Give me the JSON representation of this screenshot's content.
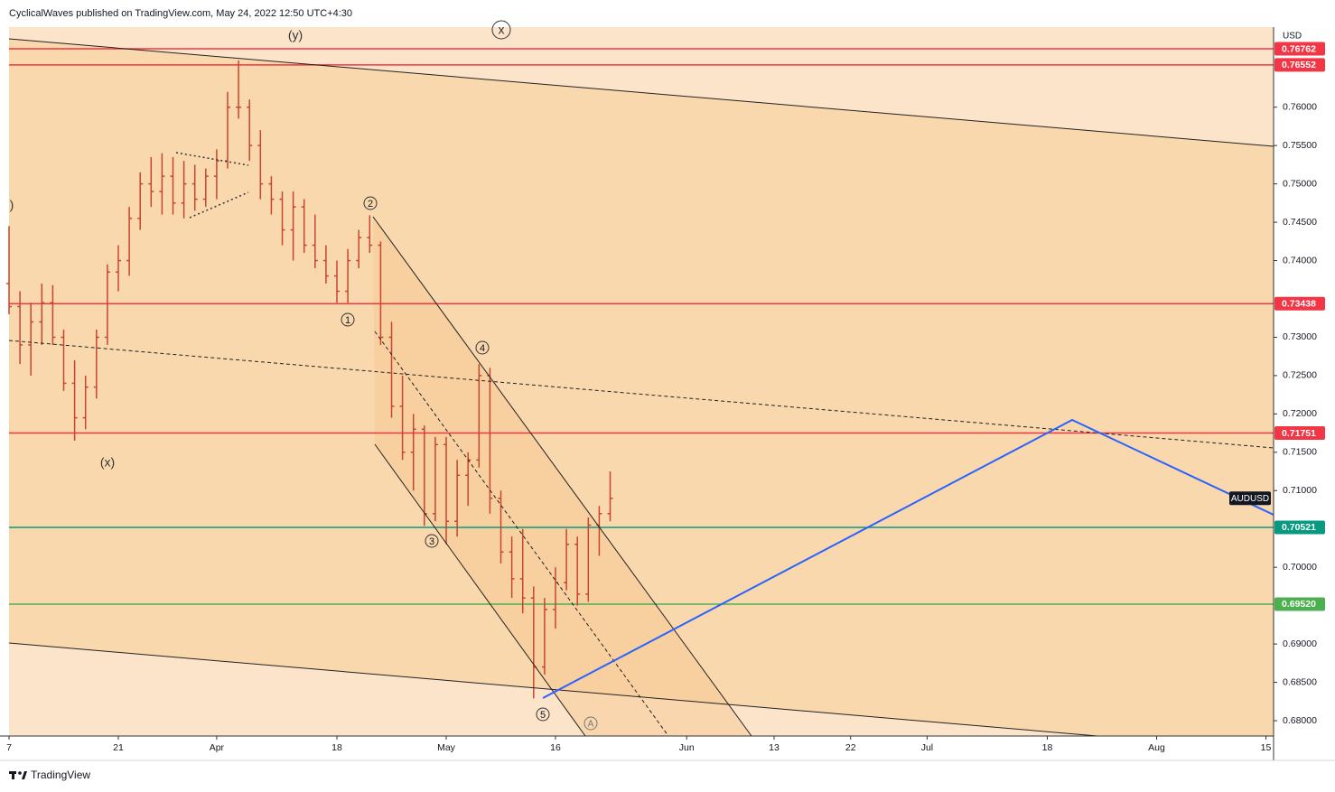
{
  "header": "CyclicalWaves published on TradingView.com, May 24, 2022 12:50 UTC+4:30",
  "footer": "TradingView",
  "chart_data": {
    "type": "ohlc",
    "currency": "USD",
    "symbol": "AUDUSD",
    "color": "#c8452f",
    "x": [
      0,
      1,
      2,
      3,
      4,
      5,
      6,
      7,
      8,
      9,
      10,
      11,
      12,
      13,
      14,
      15,
      16,
      17,
      18,
      19,
      20,
      21,
      22,
      23,
      24,
      25,
      26,
      27,
      28,
      29,
      30,
      31,
      32,
      33,
      34,
      35,
      36,
      37,
      38,
      39,
      40,
      41,
      42,
      43,
      44,
      45,
      46,
      47,
      48,
      49,
      50,
      51,
      52,
      53,
      54,
      55
    ],
    "open": [
      0.737,
      0.734,
      0.729,
      0.732,
      0.7345,
      0.73,
      0.724,
      0.7195,
      0.7235,
      0.73,
      0.7385,
      0.74,
      0.7455,
      0.75,
      0.749,
      0.751,
      0.7475,
      0.75,
      0.748,
      0.751,
      0.753,
      0.76,
      0.76,
      0.755,
      0.75,
      0.748,
      0.744,
      0.747,
      0.742,
      0.74,
      0.738,
      0.736,
      0.74,
      0.743,
      0.742,
      0.73,
      0.721,
      0.715,
      0.718,
      0.707,
      0.716,
      0.706,
      0.712,
      0.714,
      0.725,
      0.709,
      0.702,
      0.6985,
      0.696,
      0.687,
      0.6945,
      0.698,
      0.703,
      0.6965,
      0.7055,
      0.707
    ],
    "high": [
      0.7445,
      0.736,
      0.7345,
      0.737,
      0.7368,
      0.731,
      0.727,
      0.725,
      0.731,
      0.7395,
      0.742,
      0.747,
      0.7515,
      0.7535,
      0.754,
      0.7535,
      0.753,
      0.7525,
      0.752,
      0.7545,
      0.762,
      0.7661,
      0.761,
      0.757,
      0.751,
      0.749,
      0.749,
      0.748,
      0.746,
      0.742,
      0.74,
      0.7415,
      0.744,
      0.7459,
      0.7425,
      0.732,
      0.725,
      0.72,
      0.7185,
      0.717,
      0.717,
      0.714,
      0.715,
      0.7265,
      0.726,
      0.71,
      0.704,
      0.705,
      0.6975,
      0.696,
      0.7,
      0.705,
      0.704,
      0.7065,
      0.708,
      0.7125
    ],
    "low": [
      0.733,
      0.7265,
      0.725,
      0.729,
      0.729,
      0.723,
      0.7165,
      0.718,
      0.722,
      0.729,
      0.736,
      0.738,
      0.744,
      0.747,
      0.746,
      0.746,
      0.7455,
      0.7465,
      0.747,
      0.748,
      0.752,
      0.7585,
      0.753,
      0.748,
      0.746,
      0.742,
      0.74,
      0.741,
      0.739,
      0.737,
      0.7345,
      0.7345,
      0.739,
      0.741,
      0.729,
      0.7195,
      0.714,
      0.71,
      0.7054,
      0.706,
      0.703,
      0.704,
      0.708,
      0.713,
      0.707,
      0.7005,
      0.696,
      0.694,
      0.6829,
      0.686,
      0.692,
      0.697,
      0.695,
      0.6955,
      0.7015,
      0.706
    ],
    "close": [
      0.734,
      0.729,
      0.732,
      0.7345,
      0.73,
      0.724,
      0.7195,
      0.7235,
      0.73,
      0.7385,
      0.74,
      0.7455,
      0.75,
      0.749,
      0.751,
      0.7475,
      0.75,
      0.748,
      0.751,
      0.753,
      0.76,
      0.76,
      0.755,
      0.75,
      0.748,
      0.744,
      0.747,
      0.742,
      0.74,
      0.738,
      0.736,
      0.74,
      0.743,
      0.742,
      0.73,
      0.721,
      0.715,
      0.718,
      0.707,
      0.716,
      0.706,
      0.712,
      0.714,
      0.725,
      0.709,
      0.702,
      0.6985,
      0.696,
      0.687,
      0.6945,
      0.698,
      0.703,
      0.6965,
      0.7055,
      0.707,
      0.709
    ],
    "xlim": [
      0,
      115.7
    ],
    "xticks": [
      {
        "value": 0,
        "label": "7"
      },
      {
        "value": 10,
        "label": "21"
      },
      {
        "value": 19,
        "label": "Apr"
      },
      {
        "value": 30,
        "label": "18"
      },
      {
        "value": 40,
        "label": "May"
      },
      {
        "value": 50,
        "label": "16"
      },
      {
        "value": 62,
        "label": "Jun"
      },
      {
        "value": 70,
        "label": "13"
      },
      {
        "value": 77,
        "label": "22"
      },
      {
        "value": 84,
        "label": "Jul"
      },
      {
        "value": 95,
        "label": "18"
      },
      {
        "value": 105,
        "label": "Aug"
      },
      {
        "value": 115,
        "label": "15"
      }
    ],
    "ylim": [
      0.678,
      0.7728
    ],
    "yticks": [
      {
        "value": 0.76,
        "label": "0.76000"
      },
      {
        "value": 0.755,
        "label": "0.75500"
      },
      {
        "value": 0.75,
        "label": "0.75000"
      },
      {
        "value": 0.745,
        "label": "0.74500"
      },
      {
        "value": 0.74,
        "label": "0.74000"
      },
      {
        "value": 0.73,
        "label": "0.73000"
      },
      {
        "value": 0.725,
        "label": "0.72500"
      },
      {
        "value": 0.72,
        "label": "0.72000"
      },
      {
        "value": 0.715,
        "label": "0.71500"
      },
      {
        "value": 0.71,
        "label": "0.71000"
      },
      {
        "value": 0.7,
        "label": "0.70000"
      },
      {
        "value": 0.69,
        "label": "0.69000"
      },
      {
        "value": 0.685,
        "label": "0.68500"
      },
      {
        "value": 0.68,
        "label": "0.68000"
      }
    ],
    "grid": false,
    "levels": [
      {
        "value": 0.76762,
        "label": "0.76762",
        "color": "#f23645"
      },
      {
        "value": 0.76552,
        "label": "0.76552",
        "color": "#f23645"
      },
      {
        "value": 0.73438,
        "label": "0.73438",
        "color": "#f23645"
      },
      {
        "value": 0.71751,
        "label": "0.71751",
        "color": "#f23645"
      },
      {
        "value": 0.70521,
        "label": "0.70521",
        "color": "#089981"
      },
      {
        "value": 0.6952,
        "label": "0.69520",
        "color": "#4caf50"
      }
    ],
    "annotations": [
      "(y)",
      "x",
      "(x)",
      ")",
      "1",
      "2",
      "3",
      "4",
      "5",
      "A"
    ]
  }
}
